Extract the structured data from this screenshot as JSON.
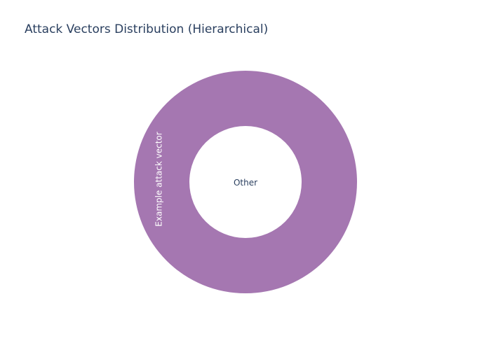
{
  "chart_data": {
    "type": "sunburst",
    "title": "Attack Vectors Distribution (Hierarchical)",
    "root": {
      "label": "Other",
      "children": [
        {
          "label": "Example attack vector",
          "value": 1,
          "color": "#a577b1"
        }
      ]
    },
    "legend": "none"
  }
}
